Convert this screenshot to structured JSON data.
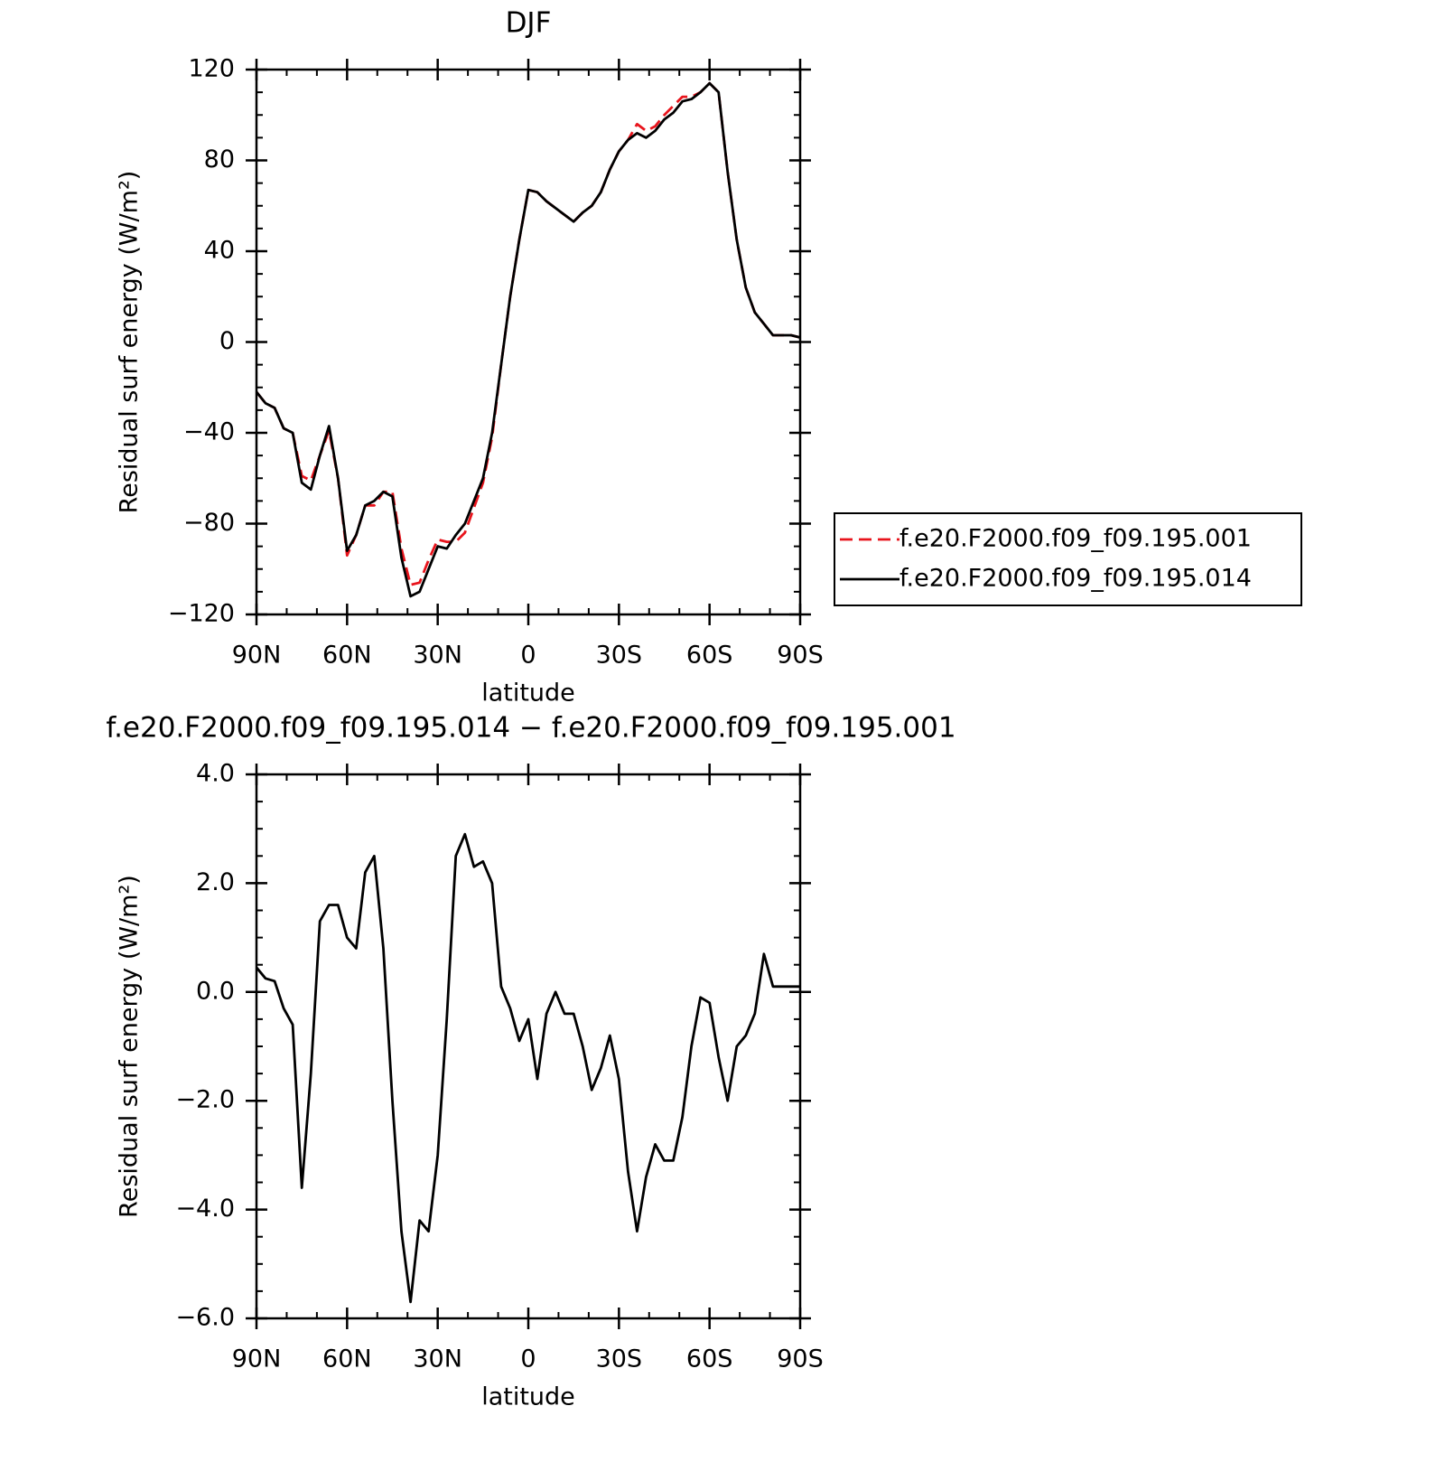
{
  "chart_data": [
    {
      "type": "line",
      "title": "DJF",
      "xlabel": "latitude",
      "ylabel": "Residual surf energy (W/m²)",
      "x": [
        90,
        87,
        84,
        81,
        78,
        75,
        72,
        69,
        66,
        63,
        60,
        57,
        54,
        51,
        48,
        45,
        42,
        39,
        36,
        33,
        30,
        27,
        24,
        21,
        18,
        15,
        12,
        9,
        6,
        3,
        0,
        -3,
        -6,
        -9,
        -12,
        -15,
        -18,
        -21,
        -24,
        -27,
        -30,
        -33,
        -36,
        -39,
        -42,
        -45,
        -48,
        -51,
        -54,
        -57,
        -60,
        -63,
        -66,
        -69,
        -72,
        -75,
        -78,
        -81,
        -84,
        -87,
        -90
      ],
      "series": [
        {
          "name": "f.e20.F2000.f09_f09.195.001",
          "color": "#e8141c",
          "linestyle": "dashed",
          "values": [
            -22,
            -27,
            -29,
            -38,
            -40,
            -59,
            -61,
            -50,
            -39,
            -60,
            -94,
            -85,
            -72,
            -72,
            -66,
            -66,
            -91,
            -107,
            -106,
            -96,
            -87,
            -88,
            -88,
            -84,
            -73,
            -62,
            -42,
            -10,
            20,
            45,
            67,
            66,
            62,
            59,
            56,
            53,
            57,
            60,
            66,
            76,
            84,
            89,
            96,
            93,
            95,
            100,
            104,
            108,
            108,
            110,
            114,
            110,
            75,
            45,
            24,
            13,
            8,
            3,
            3,
            3,
            2
          ]
        },
        {
          "name": "f.e20.F2000.f09_f09.195.014",
          "color": "#000000",
          "linestyle": "solid",
          "values": [
            -22,
            -27,
            -29,
            -38,
            -40,
            -62,
            -65,
            -50,
            -37,
            -60,
            -92,
            -85,
            -72,
            -70,
            -66,
            -68,
            -95,
            -112,
            -110,
            -100,
            -90,
            -91,
            -85,
            -80,
            -70,
            -60,
            -40,
            -10,
            20,
            45,
            67,
            66,
            62,
            59,
            56,
            53,
            57,
            60,
            66,
            76,
            84,
            89,
            92,
            90,
            93,
            98,
            101,
            106,
            107,
            110,
            114,
            110,
            75,
            45,
            24,
            13,
            8,
            3,
            3,
            3,
            2
          ]
        }
      ],
      "xlim": [
        90,
        -90
      ],
      "xticks": [
        {
          "value": 90,
          "label": "90N"
        },
        {
          "value": 60,
          "label": "60N"
        },
        {
          "value": 30,
          "label": "30N"
        },
        0,
        {
          "value": -30,
          "label": "30S"
        },
        {
          "value": -60,
          "label": "60S"
        },
        {
          "value": -90,
          "label": "90S"
        }
      ],
      "ylim": [
        -120,
        120
      ],
      "yticks": [
        {
          "value": -120,
          "label": "−120"
        },
        {
          "value": -80,
          "label": "−80"
        },
        {
          "value": -40,
          "label": "−40"
        },
        0,
        40,
        80,
        120
      ],
      "legend": "right",
      "grid": false
    },
    {
      "type": "line",
      "title": "f.e20.F2000.f09_f09.195.014 − f.e20.F2000.f09_f09.195.001",
      "xlabel": "latitude",
      "ylabel": "Residual surf energy (W/m²)",
      "x": [
        90,
        87,
        84,
        81,
        78,
        75,
        72,
        69,
        66,
        63,
        60,
        57,
        54,
        51,
        48,
        45,
        42,
        39,
        36,
        33,
        30,
        27,
        24,
        21,
        18,
        15,
        12,
        9,
        6,
        3,
        0,
        -3,
        -6,
        -9,
        -12,
        -15,
        -18,
        -21,
        -24,
        -27,
        -30,
        -33,
        -36,
        -39,
        -42,
        -45,
        -48,
        -51,
        -54,
        -57,
        -60,
        -63,
        -66,
        -69,
        -72,
        -75,
        -78,
        -81,
        -84,
        -87,
        -90
      ],
      "values": [
        0.45,
        0.25,
        0.2,
        -0.3,
        -0.6,
        -3.6,
        -1.5,
        1.3,
        1.6,
        1.6,
        1.0,
        0.8,
        2.2,
        2.5,
        0.8,
        -2.0,
        -4.4,
        -5.7,
        -4.2,
        -4.4,
        -3.0,
        -0.5,
        2.5,
        2.9,
        2.3,
        2.4,
        2.0,
        0.1,
        -0.3,
        -0.9,
        -0.5,
        -1.6,
        -0.4,
        0.0,
        -0.4,
        -0.4,
        -1.0,
        -1.8,
        -1.4,
        -0.8,
        -1.6,
        -3.3,
        -4.4,
        -3.4,
        -2.8,
        -3.1,
        -3.1,
        -2.3,
        -1.0,
        -0.1,
        -0.2,
        -1.2,
        -2.0,
        -1.0,
        -0.8,
        -0.4,
        0.7,
        0.1,
        0.1,
        0.1,
        0.1
      ],
      "color": "#000000",
      "xlim": [
        90,
        -90
      ],
      "xticks": [
        {
          "value": 90,
          "label": "90N"
        },
        {
          "value": 60,
          "label": "60N"
        },
        {
          "value": 30,
          "label": "30N"
        },
        0,
        {
          "value": -30,
          "label": "30S"
        },
        {
          "value": -60,
          "label": "60S"
        },
        {
          "value": -90,
          "label": "90S"
        }
      ],
      "ylim": [
        -6,
        4
      ],
      "yticks": [
        {
          "value": -6,
          "label": "−6.0"
        },
        {
          "value": -4,
          "label": "−4.0"
        },
        {
          "value": -2,
          "label": "−2.0"
        },
        {
          "value": 0,
          "label": "0.0"
        },
        {
          "value": 2,
          "label": "2.0"
        },
        {
          "value": 4,
          "label": "4.0"
        }
      ],
      "grid": false
    }
  ]
}
